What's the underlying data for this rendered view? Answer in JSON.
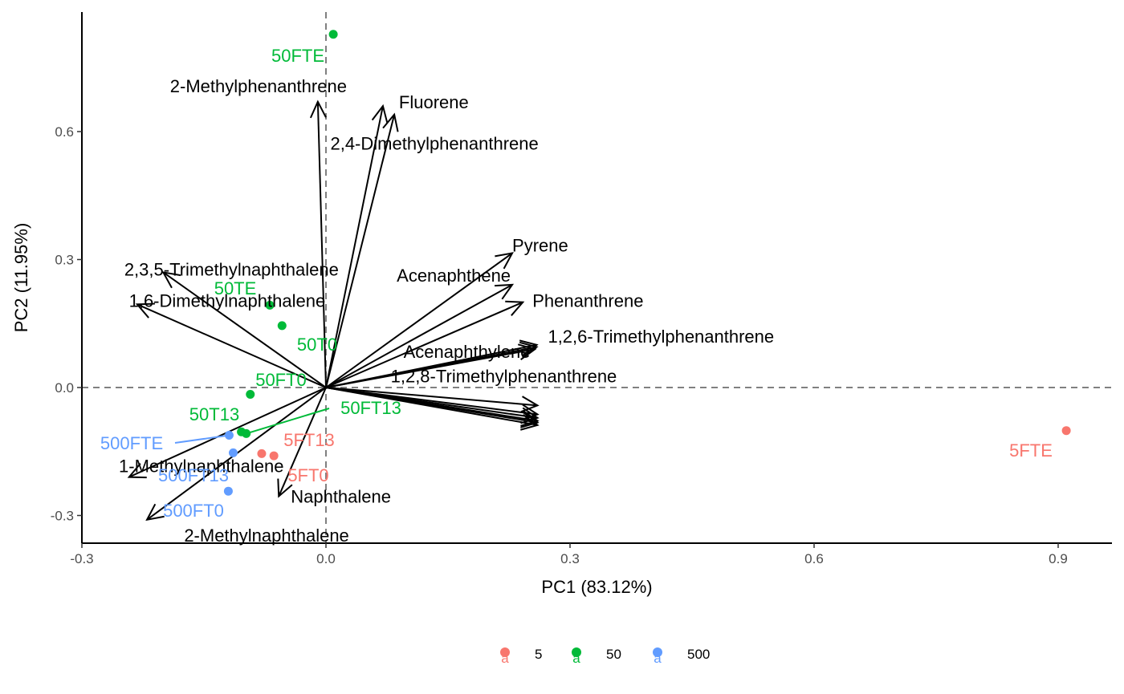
{
  "chart_data": {
    "type": "scatter",
    "subtype": "pca-biplot",
    "xlabel": "PC1 (83.12%)",
    "ylabel": "PC2 (11.95%)",
    "xlim": [
      -0.3,
      0.96
    ],
    "ylim": [
      -0.365,
      0.885
    ],
    "x_ticks": [
      -0.3,
      0.0,
      0.3,
      0.6,
      0.9
    ],
    "x_tick_labels": [
      "-0.3",
      "0.0",
      "0.3",
      "0.6",
      "0.9"
    ],
    "y_ticks": [
      -0.3,
      0.0,
      0.3,
      0.6
    ],
    "y_tick_labels": [
      "-0.3",
      "0.0",
      "0.3",
      "0.6"
    ],
    "reference_lines": {
      "x": 0,
      "y": 0,
      "style": "dashed",
      "color": "#808080"
    },
    "grid": false,
    "legend": {
      "position": "bottom",
      "entries": [
        {
          "key": "5",
          "label": "5",
          "color": "#F8766D"
        },
        {
          "key": "50",
          "label": "50",
          "color": "#00BA38"
        },
        {
          "key": "500",
          "label": "500",
          "color": "#619CFF"
        }
      ]
    },
    "series": [
      {
        "name": "5",
        "color": "#F8766D",
        "points": [
          {
            "label": "5FTE",
            "x": 0.91,
            "y": -0.101
          },
          {
            "label": "5FT13",
            "x": -0.079,
            "y": -0.155
          },
          {
            "label": "5FT0",
            "x": -0.064,
            "y": -0.16
          }
        ]
      },
      {
        "name": "50",
        "color": "#00BA38",
        "points": [
          {
            "label": "50FTE",
            "x": 0.009,
            "y": 0.828
          },
          {
            "label": "50TE",
            "x": -0.069,
            "y": 0.193
          },
          {
            "label": "50T0",
            "x": -0.054,
            "y": 0.145
          },
          {
            "label": "50FT0",
            "x": -0.093,
            "y": -0.016
          },
          {
            "label": "50T13",
            "x": -0.104,
            "y": -0.104
          },
          {
            "label": "50FT13",
            "x": -0.098,
            "y": -0.108
          }
        ]
      },
      {
        "name": "500",
        "color": "#619CFF",
        "points": [
          {
            "label": "500FTE",
            "x": -0.119,
            "y": -0.112
          },
          {
            "label": "500FT13",
            "x": -0.114,
            "y": -0.153
          },
          {
            "label": "500FT0",
            "x": -0.12,
            "y": -0.243
          }
        ]
      }
    ],
    "loadings": [
      {
        "name": "2-Methylphenanthrene",
        "x": -0.01,
        "y": 0.67
      },
      {
        "name": "Fluorene",
        "x": 0.07,
        "y": 0.66
      },
      {
        "name": "2,4-Dimethylphenanthrene",
        "x": 0.084,
        "y": 0.64
      },
      {
        "name": "2,3,5-Trimethylnaphthalene",
        "x": -0.2,
        "y": 0.27
      },
      {
        "name": "1,6-Dimethylnaphthalene",
        "x": -0.232,
        "y": 0.195
      },
      {
        "name": "Pyrene",
        "x": 0.229,
        "y": 0.315
      },
      {
        "name": "Phenanthrene",
        "x": 0.242,
        "y": 0.2
      },
      {
        "name": "Acenaphthene",
        "x": 0.229,
        "y": 0.241
      },
      {
        "name": "Acenaphthylene",
        "x": 0.257,
        "y": 0.09
      },
      {
        "name": "1,2,6-Trimethylphenanthrene",
        "x": 0.259,
        "y": 0.1
      },
      {
        "name": "1,2,8-Trimethylphenanthrene",
        "x": 0.259,
        "y": 0.095
      },
      {
        "name": "",
        "x": 0.26,
        "y": -0.042
      },
      {
        "name": "",
        "x": 0.26,
        "y": -0.063
      },
      {
        "name": "",
        "x": 0.26,
        "y": -0.071
      },
      {
        "name": "",
        "x": 0.26,
        "y": -0.078
      },
      {
        "name": "",
        "x": 0.26,
        "y": -0.082
      },
      {
        "name": "",
        "x": 0.26,
        "y": -0.088
      },
      {
        "name": "1-Methylnaphthalene",
        "x": -0.242,
        "y": -0.21
      },
      {
        "name": "2-Methylnaphthalene",
        "x": -0.22,
        "y": -0.31
      },
      {
        "name": "Naphthalene",
        "x": -0.058,
        "y": -0.255
      }
    ]
  }
}
